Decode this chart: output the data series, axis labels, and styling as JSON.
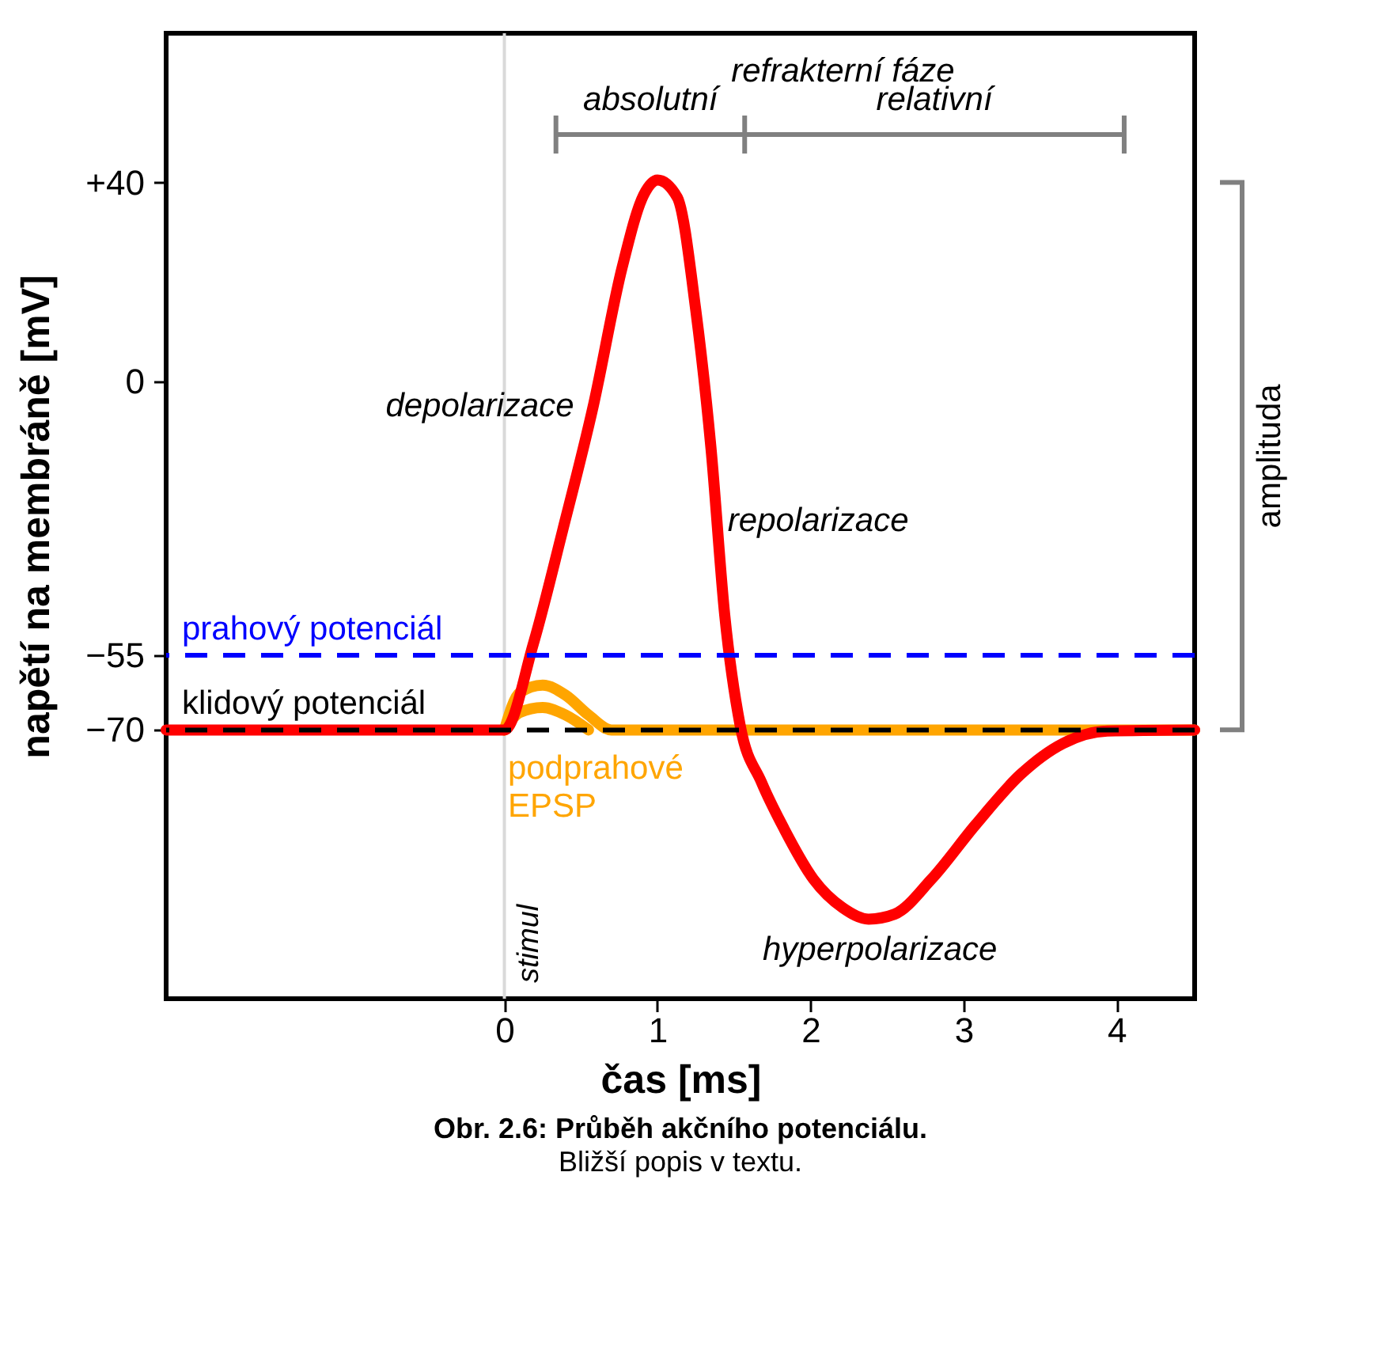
{
  "chart_data": {
    "type": "line",
    "title": "Obr. 2.6: Průběh akčního potenciálu.",
    "subtitle": "Bližší popis v textu.",
    "xlabel": "čas [ms]",
    "ylabel": "napětí na membráně [mV]",
    "xlim": [
      -2.21,
      4.51
    ],
    "ylim": [
      -124,
      70
    ],
    "xticks": [
      0,
      1,
      2,
      3,
      4
    ],
    "yticks": [
      {
        "value": 40,
        "label": "+40"
      },
      0,
      {
        "value": -55,
        "label": "−55"
      },
      {
        "value": -70,
        "label": "−70"
      }
    ],
    "series": [
      {
        "name": "podprahové EPSP",
        "color": "#ffa500",
        "x": [
          0,
          0.1,
          0.25,
          0.4,
          0.55,
          0.7,
          4.51
        ],
        "values": [
          -70,
          -62.5,
          -61,
          -63,
          -67,
          -70,
          -70
        ]
      },
      {
        "color": "#ffa500",
        "x": [
          0,
          0.1,
          0.25,
          0.4,
          0.55
        ],
        "values": [
          -70,
          -66.5,
          -65.5,
          -67,
          -70
        ]
      },
      {
        "color": "#ff0000",
        "x": [
          -2.21,
          0,
          0.19,
          0.38,
          0.58,
          0.77,
          0.91,
          1.0,
          1.13,
          1.25,
          1.35,
          1.44,
          1.54,
          1.68,
          1.83,
          2.02,
          2.21,
          2.38,
          2.55,
          2.79,
          3.08,
          3.37,
          3.65,
          3.94,
          4.51
        ],
        "values": [
          -70,
          -70,
          -52.6,
          -30,
          -5,
          23,
          37.5,
          40.5,
          37,
          14.5,
          -13.4,
          -47,
          -69,
          -80.5,
          -90,
          -100,
          -105.7,
          -108,
          -107,
          -100,
          -89,
          -79,
          -72.7,
          -70.2,
          -70
        ]
      }
    ],
    "ref_lines": [
      {
        "axis": "x",
        "value": 0,
        "label": "stimul",
        "color": "#d9d9d9",
        "line_style": "solid"
      },
      {
        "axis": "y",
        "value": -55,
        "label": "prahový potenciál",
        "color": "#0000ff",
        "line_style": "dashed"
      },
      {
        "axis": "y",
        "value": -70,
        "label": "klidový potenciál",
        "color": "#000000",
        "line_style": "dashed"
      }
    ],
    "annotations": [
      "refrakterní fáze",
      "absolutní",
      "relativní",
      "amplituda",
      "depolarizace",
      "repolarizace",
      "hyperpolarizace"
    ],
    "grid": false,
    "marker": "none",
    "line_style": "solid"
  }
}
